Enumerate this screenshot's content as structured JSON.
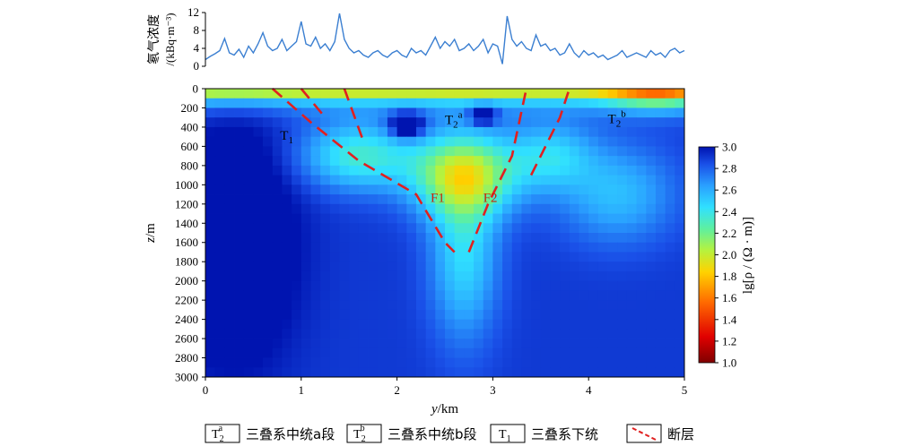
{
  "chart_data": [
    {
      "type": "line",
      "ylabel_line1": "氡气浓度",
      "ylabel_line2": "/(kBq·m⁻³)",
      "ylim": [
        0,
        12
      ],
      "xlim": [
        0,
        5
      ],
      "yticks": [
        "0",
        "4",
        "8",
        "12"
      ],
      "x": [
        0.0,
        0.05,
        0.1,
        0.15,
        0.2,
        0.25,
        0.3,
        0.35,
        0.4,
        0.45,
        0.5,
        0.55,
        0.6,
        0.65,
        0.7,
        0.75,
        0.8,
        0.85,
        0.9,
        0.95,
        1.0,
        1.05,
        1.1,
        1.15,
        1.2,
        1.25,
        1.3,
        1.35,
        1.4,
        1.45,
        1.5,
        1.55,
        1.6,
        1.65,
        1.7,
        1.75,
        1.8,
        1.85,
        1.9,
        1.95,
        2.0,
        2.05,
        2.1,
        2.15,
        2.2,
        2.25,
        2.3,
        2.35,
        2.4,
        2.45,
        2.5,
        2.55,
        2.6,
        2.65,
        2.7,
        2.75,
        2.8,
        2.85,
        2.9,
        2.95,
        3.0,
        3.05,
        3.1,
        3.15,
        3.2,
        3.25,
        3.3,
        3.35,
        3.4,
        3.45,
        3.5,
        3.55,
        3.6,
        3.65,
        3.7,
        3.75,
        3.8,
        3.85,
        3.9,
        3.95,
        4.0,
        4.05,
        4.1,
        4.15,
        4.2,
        4.25,
        4.3,
        4.35,
        4.4,
        4.45,
        4.5,
        4.55,
        4.6,
        4.65,
        4.7,
        4.75,
        4.8,
        4.85,
        4.9,
        4.95,
        5.0
      ],
      "values": [
        1.5,
        2.2,
        2.8,
        3.5,
        6.2,
        3.0,
        2.5,
        3.8,
        2.0,
        4.5,
        3.0,
        5.0,
        7.5,
        4.5,
        3.5,
        4.0,
        6.0,
        3.5,
        4.5,
        5.5,
        10.0,
        5.0,
        4.5,
        6.5,
        4.0,
        5.0,
        3.5,
        5.5,
        11.8,
        6.0,
        4.0,
        3.0,
        3.5,
        2.5,
        2.0,
        3.0,
        3.5,
        2.5,
        2.0,
        3.0,
        3.5,
        2.5,
        2.0,
        4.0,
        3.0,
        3.5,
        2.5,
        4.5,
        6.5,
        4.0,
        5.5,
        4.5,
        6.0,
        3.5,
        4.0,
        5.0,
        3.5,
        4.5,
        6.0,
        3.0,
        5.0,
        4.5,
        0.5,
        11.2,
        6.0,
        4.5,
        5.5,
        4.0,
        3.5,
        7.0,
        4.5,
        5.0,
        3.5,
        4.0,
        2.5,
        3.0,
        5.0,
        3.0,
        2.0,
        3.5,
        2.5,
        3.0,
        2.0,
        2.5,
        1.5,
        2.0,
        2.5,
        3.5,
        2.0,
        2.5,
        3.0,
        2.5,
        2.0,
        3.5,
        2.5,
        3.0,
        2.0,
        3.5,
        4.0,
        3.0,
        3.5
      ]
    },
    {
      "type": "heatmap",
      "xlabel_italic": "y",
      "xlabel_rest": "/km",
      "ylabel_italic": "z",
      "ylabel_rest": "/m",
      "xlim": [
        0,
        5
      ],
      "ylim": [
        3000,
        0
      ],
      "xticks": [
        "0",
        "1",
        "2",
        "3",
        "4",
        "5"
      ],
      "yticks": [
        "0",
        "200",
        "400",
        "600",
        "800",
        "1000",
        "1200",
        "1400",
        "1600",
        "1800",
        "2000",
        "2200",
        "2400",
        "2600",
        "2800",
        "3000"
      ],
      "colorbar": {
        "label": "lg[ρ / (Ω · m)]",
        "min": 1.0,
        "max": 3.0,
        "ticks": [
          "1.0",
          "1.2",
          "1.4",
          "1.6",
          "1.8",
          "2.0",
          "2.2",
          "2.4",
          "2.6",
          "2.8",
          "3.0"
        ]
      },
      "value_range": [
        1.0,
        3.0
      ],
      "annotations": [
        {
          "id": "t1",
          "base": "T",
          "sub": "1",
          "sup": "",
          "y_km": 0.78,
          "z_m": 530,
          "color": "#000000"
        },
        {
          "id": "t2a",
          "base": "T",
          "sub": "2",
          "sup": "a",
          "y_km": 2.5,
          "z_m": 370,
          "color": "#000000"
        },
        {
          "id": "t2b",
          "base": "T",
          "sub": "2",
          "sup": "b",
          "y_km": 4.2,
          "z_m": 360,
          "color": "#000000"
        },
        {
          "id": "f1",
          "base": "F1",
          "sub": "",
          "sup": "",
          "y_km": 2.35,
          "z_m": 1180,
          "color": "#cc2200"
        },
        {
          "id": "f2",
          "base": "F2",
          "sub": "",
          "sup": "",
          "y_km": 2.9,
          "z_m": 1180,
          "color": "#cc2200"
        }
      ],
      "faults": [
        {
          "name": "F1a",
          "points": [
            [
              0.7,
              0
            ],
            [
              1.1,
              350
            ],
            [
              1.6,
              750
            ],
            [
              2.2,
              1100
            ],
            [
              2.5,
              1600
            ],
            [
              2.6,
              1700
            ]
          ]
        },
        {
          "name": "F1b",
          "points": [
            [
              1.0,
              0
            ],
            [
              1.25,
              300
            ]
          ]
        },
        {
          "name": "F1c",
          "points": [
            [
              1.45,
              0
            ],
            [
              1.65,
              550
            ]
          ]
        },
        {
          "name": "F2a",
          "points": [
            [
              2.75,
              1700
            ],
            [
              2.95,
              1200
            ],
            [
              3.2,
              700
            ],
            [
              3.35,
              0
            ]
          ]
        },
        {
          "name": "F2b",
          "points": [
            [
              3.4,
              900
            ],
            [
              3.7,
              300
            ],
            [
              3.8,
              0
            ]
          ]
        }
      ],
      "fault_color": "#e02020"
    }
  ],
  "legend": {
    "items": [
      {
        "symbol_base": "T",
        "symbol_sub": "2",
        "symbol_sup": "a",
        "label": "三叠系中统a段"
      },
      {
        "symbol_base": "T",
        "symbol_sub": "2",
        "symbol_sup": "b",
        "label": "三叠系中统b段"
      },
      {
        "symbol_base": "T",
        "symbol_sub": "1",
        "symbol_sup": "",
        "label": "三叠系下统"
      },
      {
        "symbol_base": "",
        "symbol_sub": "",
        "symbol_sup": "",
        "label": "断层"
      }
    ]
  },
  "colors": {
    "radon_line": "#3b7fd1",
    "fault": "#e02020",
    "frame": "#000000"
  }
}
